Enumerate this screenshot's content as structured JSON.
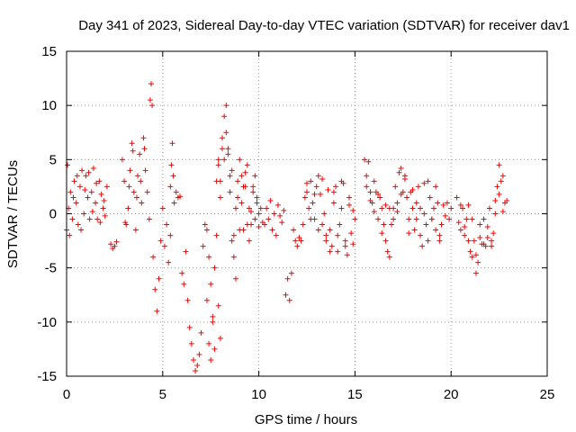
{
  "chart_data": {
    "type": "scatter",
    "title": "Day 341 of 2023, Sidereal Day-to-day VTEC variation (SDTVAR) for receiver dav1",
    "xlabel": "GPS time / hours",
    "ylabel": "SDTVAR / TECUs",
    "xlim": [
      0,
      25
    ],
    "ylim": [
      -15,
      15
    ],
    "xticks": [
      0,
      5,
      10,
      15,
      20,
      25
    ],
    "yticks": [
      -15,
      -10,
      -5,
      0,
      5,
      10,
      15
    ],
    "grid": true,
    "marker": "+",
    "color": "#ff0000",
    "series": [
      {
        "name": "SDTVAR",
        "segments": [
          {
            "t": [
              0.0,
              0.1,
              0.2,
              0.3,
              0.4,
              0.5,
              0.6,
              0.7,
              0.8,
              0.9,
              1.0,
              1.1,
              1.2,
              1.3,
              1.4,
              1.5,
              1.6,
              1.7,
              1.8,
              1.9,
              2.0,
              2.1
            ],
            "v": [
              -1.5,
              0.5,
              2.0,
              -0.5,
              3.0,
              1.0,
              -1.0,
              2.5,
              4.0,
              0.0,
              3.5,
              1.5,
              -0.5,
              2.0,
              4.2,
              1.0,
              -0.5,
              3.0,
              1.8,
              0.5,
              -0.2,
              2.5
            ]
          },
          {
            "t": [
              0.05,
              0.15,
              0.35,
              0.55,
              0.75,
              0.95,
              1.15,
              1.35,
              1.55,
              1.75,
              1.95
            ],
            "v": [
              4.5,
              -2.0,
              1.5,
              3.5,
              -1.5,
              2.2,
              3.8,
              0.2,
              2.8,
              -0.8,
              1.2
            ]
          },
          {
            "t": [
              2.3,
              2.4,
              2.5,
              2.6
            ],
            "v": [
              -2.8,
              -3.2,
              -3.0,
              -2.6
            ]
          },
          {
            "t": [
              2.9,
              3.0,
              3.1,
              3.2,
              3.3,
              3.4,
              3.5,
              3.6,
              3.7,
              3.8,
              3.9,
              4.0,
              4.1,
              4.2,
              4.3
            ],
            "v": [
              5.0,
              3.0,
              -1.0,
              0.5,
              4.0,
              6.5,
              2.0,
              -1.5,
              3.5,
              5.5,
              1.0,
              7.0,
              4.0,
              2.0,
              -0.5
            ]
          },
          {
            "t": [
              3.05,
              3.25,
              3.45,
              3.65,
              3.85,
              4.05
            ],
            "v": [
              -0.8,
              2.5,
              5.8,
              1.5,
              3.0,
              6.0
            ]
          },
          {
            "t": [
              4.35,
              4.4,
              4.45
            ],
            "v": [
              10.5,
              12.0,
              10.0
            ]
          },
          {
            "t": [
              4.5,
              4.6,
              4.7,
              4.8,
              4.9,
              5.0,
              5.1,
              5.2,
              5.3,
              5.4
            ],
            "v": [
              -4.0,
              -7.0,
              -9.0,
              -6.0,
              -2.5,
              0.5,
              -3.0,
              -1.0,
              -4.5,
              -2.0
            ]
          },
          {
            "t": [
              5.4,
              5.45,
              5.5,
              5.55,
              5.6
            ],
            "v": [
              2.5,
              4.5,
              6.5,
              3.5,
              1.0
            ]
          },
          {
            "t": [
              5.7,
              5.8,
              5.9
            ],
            "v": [
              2.0,
              1.5,
              1.6
            ]
          },
          {
            "t": [
              6.0,
              6.1,
              6.2,
              6.3,
              6.4,
              6.5,
              6.6,
              6.7,
              6.8,
              6.9,
              7.0
            ],
            "v": [
              -5.5,
              -6.5,
              -3.5,
              -8.0,
              -10.5,
              -12.0,
              -13.5,
              -14.5,
              -14.0,
              -13.0,
              -11.0
            ]
          },
          {
            "t": [
              7.1,
              7.2,
              7.3,
              7.4,
              7.5,
              7.6,
              7.7,
              7.8,
              7.9,
              8.0
            ],
            "v": [
              -3.0,
              -1.0,
              -8.0,
              -12.0,
              -13.5,
              -10.0,
              -5.0,
              -2.0,
              -8.5,
              -11.5
            ]
          },
          {
            "t": [
              7.3,
              7.4,
              7.5,
              7.6,
              7.7
            ],
            "v": [
              -1.5,
              -4.0,
              -6.5,
              -9.5,
              -12.5
            ]
          },
          {
            "t": [
              7.8,
              7.9,
              8.0,
              8.1,
              8.2,
              8.3,
              8.4,
              8.5,
              8.6,
              8.7,
              8.8,
              8.9,
              9.0,
              9.1,
              9.2,
              9.3,
              9.4,
              9.5,
              9.6,
              9.7,
              9.8,
              9.9,
              10.0
            ],
            "v": [
              3.0,
              5.0,
              1.5,
              7.0,
              9.0,
              10.0,
              5.5,
              2.0,
              4.0,
              -2.0,
              -6.0,
              1.5,
              5.0,
              3.5,
              -1.5,
              2.5,
              4.5,
              0.5,
              -1.0,
              2.0,
              3.5,
              1.0,
              0.0
            ]
          },
          {
            "t": [
              7.9,
              8.0,
              8.1,
              8.2,
              8.3,
              8.4,
              8.5,
              8.6,
              8.7,
              8.8,
              8.9,
              9.0,
              9.1,
              9.2,
              9.3,
              9.4,
              9.5,
              9.6,
              9.7,
              9.8,
              9.9,
              10.0,
              10.1,
              10.2
            ],
            "v": [
              4.5,
              3.0,
              6.0,
              5.0,
              7.5,
              6.0,
              3.5,
              -2.5,
              -4.0,
              0.5,
              3.0,
              -1.5,
              1.0,
              2.5,
              3.8,
              -1.0,
              -2.5,
              0.2,
              2.5,
              -0.5,
              1.5,
              -1.2,
              0.5,
              -0.8
            ]
          },
          {
            "t": [
              10.3,
              10.4,
              10.5,
              10.6,
              10.7,
              10.8,
              10.9,
              11.0,
              11.1,
              11.2,
              11.3,
              11.4,
              11.5,
              11.6,
              11.7,
              11.8,
              11.9,
              12.0,
              12.1,
              12.2
            ],
            "v": [
              -1.0,
              0.5,
              -0.5,
              1.2,
              -1.5,
              0.0,
              -2.0,
              0.8,
              -0.2,
              -0.8,
              0.3,
              -7.5,
              -6.0,
              -8.0,
              -5.5,
              -1.5,
              -2.5,
              -3.0,
              -2.2,
              -2.5
            ]
          },
          {
            "t": [
              12.3,
              12.4,
              12.5,
              12.6,
              12.7,
              12.8,
              12.9,
              13.0,
              13.1,
              13.2,
              13.3,
              13.4,
              13.5,
              13.6,
              13.7,
              13.8,
              13.9,
              14.0,
              14.1,
              14.2,
              14.3,
              14.4,
              14.5,
              14.6,
              14.7,
              14.8,
              14.9,
              15.0
            ],
            "v": [
              -1.0,
              1.5,
              2.8,
              0.5,
              3.0,
              1.0,
              -0.5,
              2.5,
              -1.5,
              1.8,
              3.2,
              0.0,
              -2.0,
              2.2,
              -1.5,
              -3.0,
              1.0,
              2.5,
              -3.5,
              -1.0,
              0.5,
              2.8,
              -2.5,
              -3.8,
              0.8,
              -1.8,
              0.3,
              -0.5
            ]
          },
          {
            "t": [
              12.5,
              12.7,
              12.9,
              13.1,
              13.3,
              13.5,
              13.7,
              13.9,
              14.1,
              14.3,
              14.5,
              14.7,
              14.9
            ],
            "v": [
              2.0,
              -0.5,
              1.8,
              3.5,
              -1.0,
              -2.5,
              -3.5,
              2.0,
              -2.0,
              3.0,
              -3.0,
              1.5,
              -2.8
            ]
          },
          {
            "t": [
              15.5,
              15.6,
              15.7,
              15.8,
              15.9,
              16.0,
              16.1,
              16.2,
              16.3,
              16.4,
              16.5,
              16.6,
              16.7,
              16.8,
              16.9,
              17.0,
              17.1,
              17.2,
              17.3,
              17.4,
              17.5,
              17.6,
              17.7,
              17.8,
              17.9,
              18.0,
              18.1,
              18.2,
              18.3,
              18.4,
              18.5,
              18.6,
              18.7,
              18.8,
              18.9,
              19.0,
              19.1,
              19.2,
              19.3,
              19.4,
              19.5,
              19.6,
              19.7,
              19.8,
              19.9,
              20.0
            ],
            "v": [
              5.0,
              3.5,
              4.8,
              2.0,
              1.0,
              3.0,
              2.0,
              -0.5,
              1.5,
              0.5,
              -1.0,
              0.8,
              -3.5,
              -4.0,
              -1.0,
              0.5,
              2.5,
              1.0,
              3.8,
              4.2,
              2.0,
              3.5,
              1.5,
              -0.5,
              2.0,
              0.5,
              -1.5,
              1.0,
              2.5,
              -2.0,
              -3.0,
              0.0,
              -1.0,
              3.0,
              1.5,
              -0.5,
              0.5,
              -1.5,
              1.0,
              -2.5,
              -1.0,
              0.8,
              -0.2,
              1.0,
              -0.5,
              0.5
            ]
          },
          {
            "t": [
              15.6,
              15.8,
              16.0,
              16.2,
              16.4,
              16.6,
              16.8,
              17.0,
              17.2,
              17.4,
              17.6,
              17.8,
              18.0,
              18.2,
              18.4,
              18.6,
              18.8,
              19.0,
              19.2,
              19.4
            ],
            "v": [
              2.5,
              1.2,
              0.2,
              1.8,
              -1.8,
              -2.5,
              0.5,
              -0.5,
              0.2,
              1.8,
              3.2,
              -1.8,
              2.2,
              -0.5,
              0.5,
              2.8,
              -2.5,
              -0.5,
              2.5,
              -2.0
            ]
          },
          {
            "t": [
              20.3,
              20.4,
              20.5,
              20.6,
              20.7,
              20.8,
              20.9,
              21.0,
              21.1,
              21.2,
              21.3,
              21.4,
              21.5,
              21.6,
              21.7,
              21.8,
              21.9,
              22.0,
              22.1,
              22.2,
              22.3,
              22.4,
              22.5,
              22.6,
              22.7,
              22.8,
              22.9
            ],
            "v": [
              1.5,
              -0.8,
              -1.5,
              0.5,
              -2.0,
              -0.5,
              0.8,
              -3.5,
              -4.0,
              -2.5,
              -5.5,
              -4.5,
              -1.0,
              -2.8,
              -0.5,
              -3.0,
              -2.2,
              0.5,
              -3.0,
              -1.8,
              1.2,
              2.5,
              4.5,
              3.0,
              0.2,
              1.0,
              1.2
            ]
          },
          {
            "t": [
              20.5,
              20.7,
              20.9,
              21.1,
              21.3,
              21.5,
              21.7,
              21.9,
              22.1,
              22.3,
              22.5,
              22.7
            ],
            "v": [
              0.8,
              -1.2,
              -2.5,
              -0.5,
              -3.8,
              -2.2,
              -2.8,
              -1.2,
              -2.5,
              0.0,
              1.8,
              3.5
            ]
          }
        ]
      }
    ]
  }
}
